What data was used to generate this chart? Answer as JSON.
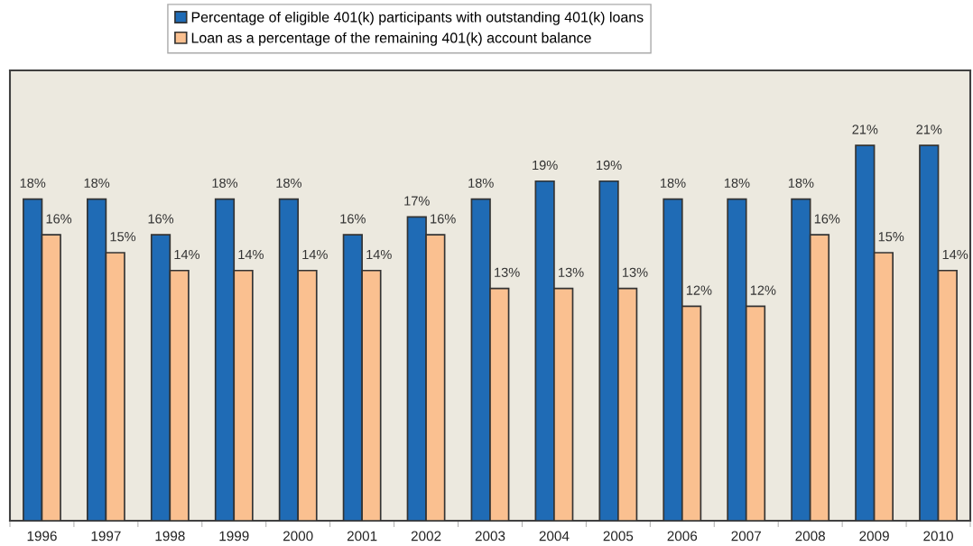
{
  "chart_data": {
    "type": "bar",
    "categories": [
      "1996",
      "1997",
      "1998",
      "1999",
      "2000",
      "2001",
      "2002",
      "2003",
      "2004",
      "2005",
      "2006",
      "2007",
      "2008",
      "2009",
      "2010"
    ],
    "series": [
      {
        "name": "Percentage of eligible 401(k) participants with outstanding 401(k) loans",
        "color": "#1f6bb5",
        "values": [
          18,
          18,
          16,
          18,
          18,
          16,
          17,
          18,
          19,
          19,
          18,
          18,
          18,
          21,
          21
        ],
        "value_labels": [
          "18%",
          "18%",
          "16%",
          "18%",
          "18%",
          "16%",
          "17%",
          "18%",
          "19%",
          "19%",
          "18%",
          "18%",
          "18%",
          "21%",
          "21%"
        ]
      },
      {
        "name": "Loan as a percentage of the remaining 401(k) account balance",
        "color": "#fac090",
        "values": [
          16,
          15,
          14,
          14,
          14,
          14,
          16,
          13,
          13,
          13,
          12,
          12,
          16,
          15,
          14
        ],
        "value_labels": [
          "16%",
          "15%",
          "14%",
          "14%",
          "14%",
          "14%",
          "16%",
          "13%",
          "13%",
          "13%",
          "12%",
          "12%",
          "16%",
          "15%",
          "14%"
        ]
      }
    ],
    "legend": "top",
    "tick_labels": "x"
  }
}
